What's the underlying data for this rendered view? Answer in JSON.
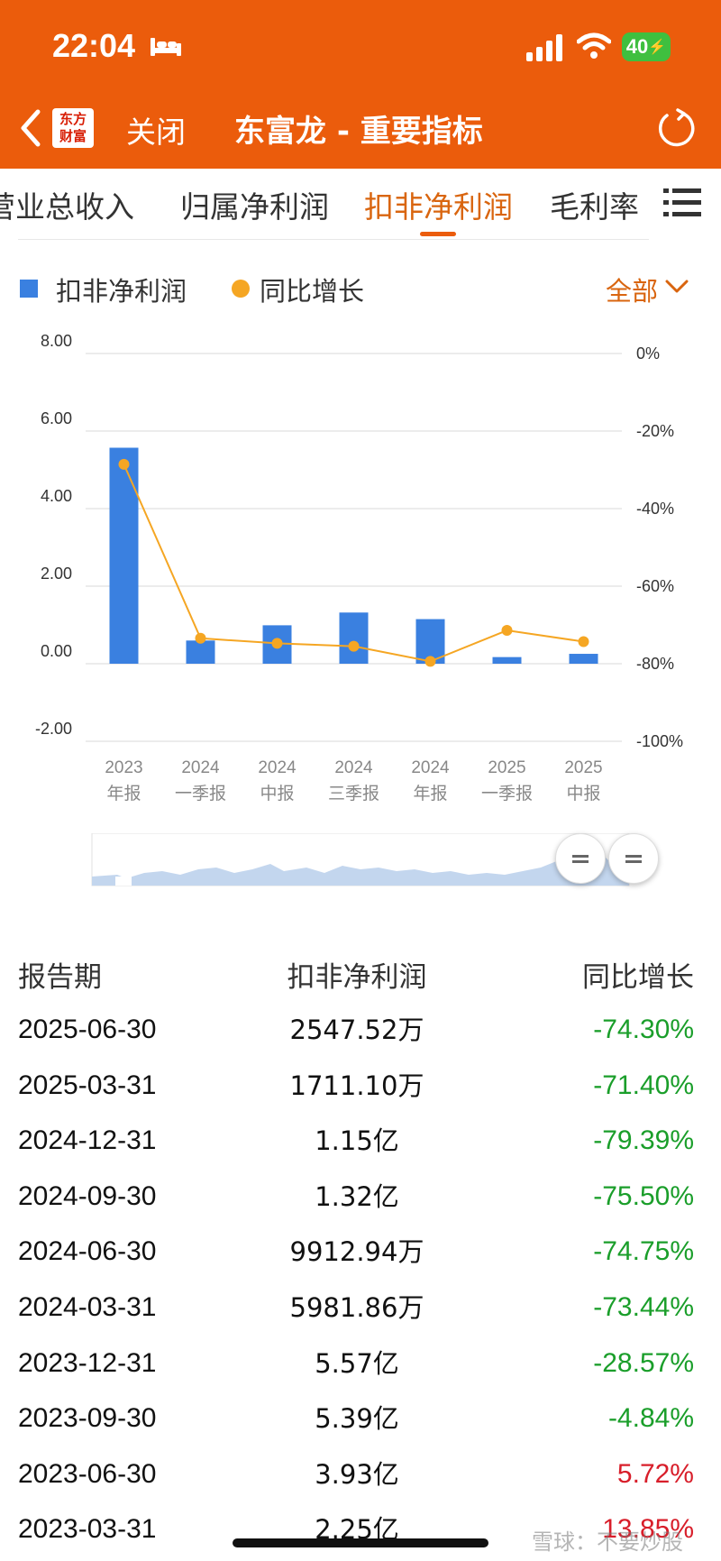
{
  "status_bar": {
    "time": "22:04",
    "battery": "40"
  },
  "header": {
    "logo_line1": "东方",
    "logo_line2": "财富",
    "close_label": "关闭",
    "title": "东富龙 - 重要指标"
  },
  "tabs": [
    {
      "label": "营业总收入",
      "active": false
    },
    {
      "label": "归属净利润",
      "active": false
    },
    {
      "label": "扣非净利润",
      "active": true
    },
    {
      "label": "毛利率",
      "active": false
    }
  ],
  "legend": {
    "bar_label": "扣非净利润",
    "line_label": "同比增长",
    "filter_label": "全部"
  },
  "colors": {
    "brand": "#eb5c0c",
    "bar": "#3a80e0",
    "line": "#f5a623",
    "negative": "#1a9e2a",
    "positive": "#d81e2a"
  },
  "chart_data": {
    "type": "bar",
    "categories": [
      [
        "2023",
        "年报"
      ],
      [
        "2024",
        "一季报"
      ],
      [
        "2024",
        "中报"
      ],
      [
        "2024",
        "三季报"
      ],
      [
        "2024",
        "年报"
      ],
      [
        "2025",
        "一季报"
      ],
      [
        "2025",
        "中报"
      ]
    ],
    "series": [
      {
        "name": "扣非净利润",
        "type": "bar",
        "axis": "left",
        "values": [
          5.57,
          0.598,
          0.991,
          1.32,
          1.15,
          0.171,
          0.255
        ]
      },
      {
        "name": "同比增长",
        "type": "line",
        "axis": "right",
        "values": [
          -28.57,
          -73.44,
          -74.75,
          -75.5,
          -79.39,
          -71.4,
          -74.3
        ]
      }
    ],
    "left_ticks": [
      "8.00",
      "6.00",
      "4.00",
      "2.00",
      "0.00",
      "-2.00"
    ],
    "right_ticks": [
      "0%",
      "-20%",
      "-40%",
      "-60%",
      "-80%",
      "-100%"
    ],
    "ylim_left": [
      -2,
      8
    ],
    "ylim_right": [
      -100,
      0
    ],
    "grid": true
  },
  "table": {
    "headers": {
      "period": "报告期",
      "value": "扣非净利润",
      "yoy": "同比增长"
    },
    "rows": [
      {
        "period": "2025-06-30",
        "value": "2547.52万",
        "yoy": "-74.30%"
      },
      {
        "period": "2025-03-31",
        "value": "1711.10万",
        "yoy": "-71.40%"
      },
      {
        "period": "2024-12-31",
        "value": "1.15亿",
        "yoy": "-79.39%"
      },
      {
        "period": "2024-09-30",
        "value": "1.32亿",
        "yoy": "-75.50%"
      },
      {
        "period": "2024-06-30",
        "value": "9912.94万",
        "yoy": "-74.75%"
      },
      {
        "period": "2024-03-31",
        "value": "5981.86万",
        "yoy": "-73.44%"
      },
      {
        "period": "2023-12-31",
        "value": "5.57亿",
        "yoy": "-28.57%"
      },
      {
        "period": "2023-09-30",
        "value": "5.39亿",
        "yoy": "-4.84%"
      },
      {
        "period": "2023-06-30",
        "value": "3.93亿",
        "yoy": "5.72%"
      },
      {
        "period": "2023-03-31",
        "value": "2.25亿",
        "yoy": "13.85%"
      }
    ]
  },
  "watermark": "雪球：不要炒股"
}
